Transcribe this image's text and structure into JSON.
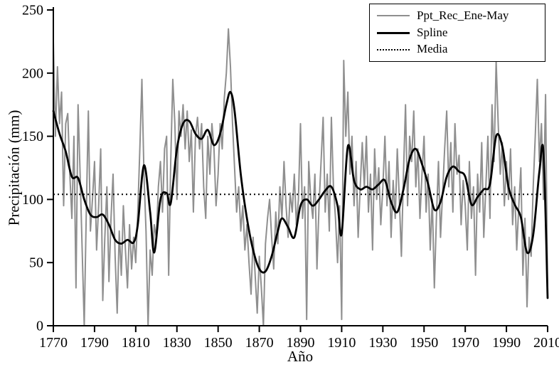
{
  "chart_data": {
    "type": "line",
    "title": "",
    "xlabel": "Año",
    "ylabel": "Precipitación (mm)",
    "xlim": [
      1770,
      2010
    ],
    "ylim": [
      0,
      250
    ],
    "xticks": [
      1770,
      1790,
      1810,
      1830,
      1850,
      1870,
      1890,
      1910,
      1930,
      1950,
      1970,
      1990,
      2010
    ],
    "yticks": [
      0,
      50,
      100,
      150,
      200,
      250
    ],
    "grid": false,
    "legend_position": "top-right",
    "colors": {
      "reconstruction": "#8f8f8f",
      "spline": "#000000",
      "media": "#000000",
      "axis": "#000000"
    },
    "mean_value": 104,
    "series": [
      {
        "name": "Ppt_Rec_Ene-May",
        "style": "solid",
        "color": "#8f8f8f",
        "x_start": 1770,
        "x_step": 1,
        "values": [
          225,
          150,
          205,
          160,
          185,
          95,
          160,
          168,
          120,
          85,
          150,
          30,
          175,
          120,
          60,
          0,
          90,
          170,
          75,
          100,
          130,
          60,
          95,
          140,
          20,
          70,
          110,
          35,
          85,
          120,
          55,
          10,
          75,
          40,
          95,
          60,
          30,
          80,
          45,
          70,
          50,
          90,
          140,
          195,
          120,
          75,
          0,
          60,
          40,
          80,
          70,
          110,
          130,
          90,
          140,
          150,
          40,
          130,
          195,
          160,
          100,
          170,
          150,
          175,
          140,
          170,
          130,
          155,
          90,
          150,
          165,
          140,
          160,
          110,
          85,
          150,
          120,
          160,
          140,
          95,
          120,
          160,
          140,
          180,
          200,
          235,
          205,
          160,
          125,
          90,
          110,
          75,
          95,
          60,
          80,
          50,
          25,
          70,
          40,
          10,
          55,
          30,
          0,
          65,
          85,
          100,
          70,
          45,
          90,
          65,
          110,
          85,
          130,
          95,
          70,
          105,
          90,
          120,
          80,
          100,
          160,
          85,
          110,
          5,
          130,
          100,
          85,
          120,
          45,
          95,
          130,
          165,
          90,
          120,
          75,
          165,
          110,
          85,
          50,
          95,
          5,
          210,
          150,
          185,
          120,
          150,
          95,
          130,
          70,
          110,
          145,
          110,
          150,
          90,
          120,
          60,
          140,
          100,
          125,
          80,
          110,
          150,
          95,
          130,
          70,
          115,
          85,
          140,
          100,
          55,
          120,
          175,
          95,
          150,
          130,
          170,
          110,
          140,
          85,
          120,
          150,
          90,
          120,
          60,
          100,
          30,
          85,
          130,
          70,
          105,
          140,
          170,
          110,
          145,
          90,
          160,
          120,
          135,
          80,
          115,
          95,
          60,
          130,
          85,
          110,
          40,
          120,
          90,
          145,
          70,
          110,
          150,
          85,
          175,
          130,
          210,
          160,
          120,
          145,
          95,
          130,
          100,
          140,
          80,
          110,
          60,
          95,
          125,
          40,
          85,
          15,
          70,
          55,
          110,
          150,
          195,
          130,
          160,
          100,
          183,
          25
        ]
      },
      {
        "name": "Spline",
        "style": "smooth",
        "color": "#000000",
        "points": [
          [
            1770,
            170
          ],
          [
            1773,
            152
          ],
          [
            1776,
            138
          ],
          [
            1779,
            118
          ],
          [
            1782,
            117
          ],
          [
            1785,
            100
          ],
          [
            1788,
            88
          ],
          [
            1791,
            86
          ],
          [
            1794,
            88
          ],
          [
            1797,
            80
          ],
          [
            1800,
            68
          ],
          [
            1803,
            65
          ],
          [
            1806,
            68
          ],
          [
            1809,
            66
          ],
          [
            1811,
            80
          ],
          [
            1814,
            127
          ],
          [
            1817,
            90
          ],
          [
            1819,
            58
          ],
          [
            1822,
            100
          ],
          [
            1825,
            105
          ],
          [
            1827,
            97
          ],
          [
            1830,
            140
          ],
          [
            1833,
            160
          ],
          [
            1836,
            162
          ],
          [
            1839,
            152
          ],
          [
            1842,
            148
          ],
          [
            1845,
            155
          ],
          [
            1848,
            143
          ],
          [
            1851,
            152
          ],
          [
            1854,
            175
          ],
          [
            1856,
            185
          ],
          [
            1858,
            170
          ],
          [
            1861,
            120
          ],
          [
            1864,
            85
          ],
          [
            1867,
            60
          ],
          [
            1870,
            45
          ],
          [
            1873,
            43
          ],
          [
            1876,
            55
          ],
          [
            1879,
            75
          ],
          [
            1881,
            85
          ],
          [
            1884,
            78
          ],
          [
            1887,
            70
          ],
          [
            1890,
            95
          ],
          [
            1893,
            100
          ],
          [
            1896,
            95
          ],
          [
            1899,
            100
          ],
          [
            1902,
            107
          ],
          [
            1905,
            110
          ],
          [
            1908,
            95
          ],
          [
            1910,
            73
          ],
          [
            1913,
            142
          ],
          [
            1916,
            115
          ],
          [
            1919,
            108
          ],
          [
            1922,
            110
          ],
          [
            1925,
            108
          ],
          [
            1928,
            112
          ],
          [
            1931,
            115
          ],
          [
            1934,
            98
          ],
          [
            1937,
            90
          ],
          [
            1940,
            108
          ],
          [
            1943,
            132
          ],
          [
            1946,
            140
          ],
          [
            1949,
            128
          ],
          [
            1952,
            112
          ],
          [
            1955,
            92
          ],
          [
            1958,
            98
          ],
          [
            1961,
            118
          ],
          [
            1964,
            126
          ],
          [
            1967,
            122
          ],
          [
            1970,
            118
          ],
          [
            1973,
            96
          ],
          [
            1976,
            102
          ],
          [
            1979,
            108
          ],
          [
            1982,
            112
          ],
          [
            1985,
            150
          ],
          [
            1988,
            142
          ],
          [
            1991,
            110
          ],
          [
            1994,
            96
          ],
          [
            1997,
            86
          ],
          [
            2000,
            58
          ],
          [
            2003,
            72
          ],
          [
            2006,
            122
          ],
          [
            2008,
            137
          ],
          [
            2010,
            22
          ]
        ]
      },
      {
        "name": "Media",
        "style": "dotted",
        "color": "#000000",
        "value": 104
      }
    ]
  },
  "legend": {
    "entries": [
      {
        "label": "Ppt_Rec_Ene-May"
      },
      {
        "label": "Spline"
      },
      {
        "label": "Media"
      }
    ]
  }
}
